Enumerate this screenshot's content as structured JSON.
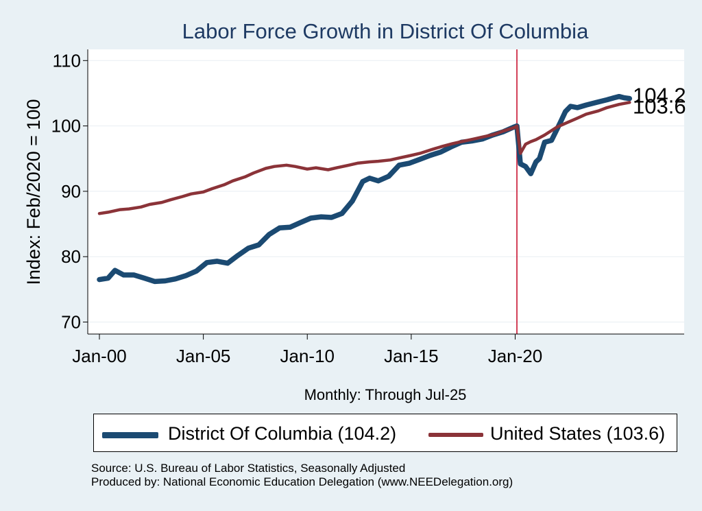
{
  "title": "Labor Force Growth in District Of Columbia",
  "colors": {
    "dc": "#1b4a72",
    "us": "#8b3338",
    "marker": "#c8102e",
    "grid": "#e8eef2",
    "background": "#e9f1f5"
  },
  "legend": {
    "dc": "District Of Columbia (104.2)",
    "us": "United States (103.6)"
  },
  "source": {
    "line1": "Source: U.S. Bureau of Labor Statistics, Seasonally Adjusted",
    "line2": "Produced by: National Economic Education Delegation (www.NEEDelegation.org)"
  },
  "chart_data": {
    "type": "line",
    "title": "Labor Force Growth in District Of Columbia",
    "xlabel": "Monthly: Through Jul-25",
    "ylabel": "Index: Feb/2020 = 100",
    "x_ticks": [
      "Jan-00",
      "Jan-05",
      "Jan-10",
      "Jan-15",
      "Jan-20"
    ],
    "y_ticks": [
      70,
      80,
      90,
      100,
      110
    ],
    "xlim": [
      "2000-01",
      "2027-10"
    ],
    "ylim": [
      69,
      111.5
    ],
    "grid": true,
    "legend_position": "bottom",
    "vertical_marker": "2020-02",
    "end_labels": [
      "104.2",
      "103.6"
    ],
    "series": [
      {
        "name": "District Of Columbia",
        "x": [
          "2000-01",
          "2000-06",
          "2000-10",
          "2001-03",
          "2001-09",
          "2002-03",
          "2002-09",
          "2003-03",
          "2003-09",
          "2004-03",
          "2004-09",
          "2005-03",
          "2005-09",
          "2006-03",
          "2006-09",
          "2007-03",
          "2007-09",
          "2008-03",
          "2008-09",
          "2009-03",
          "2009-09",
          "2010-03",
          "2010-09",
          "2011-03",
          "2011-09",
          "2012-03",
          "2012-09",
          "2013-01",
          "2013-06",
          "2013-12",
          "2014-06",
          "2014-12",
          "2015-06",
          "2015-12",
          "2016-06",
          "2016-12",
          "2017-06",
          "2017-12",
          "2018-06",
          "2018-12",
          "2019-06",
          "2019-12",
          "2020-02",
          "2020-04",
          "2020-07",
          "2020-10",
          "2021-01",
          "2021-03",
          "2021-06",
          "2021-10",
          "2022-03",
          "2022-06",
          "2022-09",
          "2023-01",
          "2023-06",
          "2023-12",
          "2024-06",
          "2024-10",
          "2025-01",
          "2025-04",
          "2025-07"
        ],
        "values": [
          76.5,
          76.7,
          77.9,
          77.2,
          77.2,
          76.7,
          76.2,
          76.3,
          76.6,
          77.1,
          77.8,
          79.1,
          79.3,
          79.0,
          80.2,
          81.3,
          81.8,
          83.4,
          84.4,
          84.5,
          85.2,
          85.9,
          86.1,
          86.0,
          86.6,
          88.5,
          91.5,
          92.0,
          91.6,
          92.3,
          94.0,
          94.3,
          94.9,
          95.5,
          96.0,
          96.8,
          97.5,
          97.7,
          98.0,
          98.6,
          99.1,
          99.8,
          100.0,
          94.2,
          93.8,
          92.7,
          94.5,
          95.0,
          97.5,
          97.8,
          100.5,
          102.2,
          103.0,
          102.8,
          103.2,
          103.6,
          104.0,
          104.3,
          104.5,
          104.3,
          104.2
        ]
      },
      {
        "name": "United States",
        "x": [
          "2000-01",
          "2000-06",
          "2001-01",
          "2001-06",
          "2002-01",
          "2002-06",
          "2003-01",
          "2003-06",
          "2004-01",
          "2004-06",
          "2005-01",
          "2005-06",
          "2006-01",
          "2006-06",
          "2007-01",
          "2007-06",
          "2008-01",
          "2008-06",
          "2009-01",
          "2009-06",
          "2010-01",
          "2010-06",
          "2011-01",
          "2011-06",
          "2012-01",
          "2012-06",
          "2013-01",
          "2013-06",
          "2014-01",
          "2014-06",
          "2015-01",
          "2015-06",
          "2016-01",
          "2016-06",
          "2017-01",
          "2017-06",
          "2018-01",
          "2018-06",
          "2019-01",
          "2019-06",
          "2020-01",
          "2020-02",
          "2020-04",
          "2020-07",
          "2020-10",
          "2021-01",
          "2021-06",
          "2022-01",
          "2022-06",
          "2023-01",
          "2023-06",
          "2024-01",
          "2024-06",
          "2025-01",
          "2025-07"
        ],
        "values": [
          86.6,
          86.8,
          87.2,
          87.3,
          87.6,
          88.0,
          88.3,
          88.7,
          89.2,
          89.6,
          89.9,
          90.4,
          91.0,
          91.6,
          92.2,
          92.8,
          93.5,
          93.8,
          94.0,
          93.8,
          93.4,
          93.6,
          93.3,
          93.6,
          94.0,
          94.3,
          94.5,
          94.6,
          94.8,
          95.1,
          95.5,
          95.8,
          96.4,
          96.8,
          97.3,
          97.6,
          98.0,
          98.3,
          98.7,
          99.2,
          99.8,
          100.0,
          95.8,
          97.2,
          97.6,
          97.9,
          98.6,
          99.8,
          100.4,
          101.2,
          101.8,
          102.3,
          102.8,
          103.3,
          103.6
        ]
      }
    ]
  }
}
